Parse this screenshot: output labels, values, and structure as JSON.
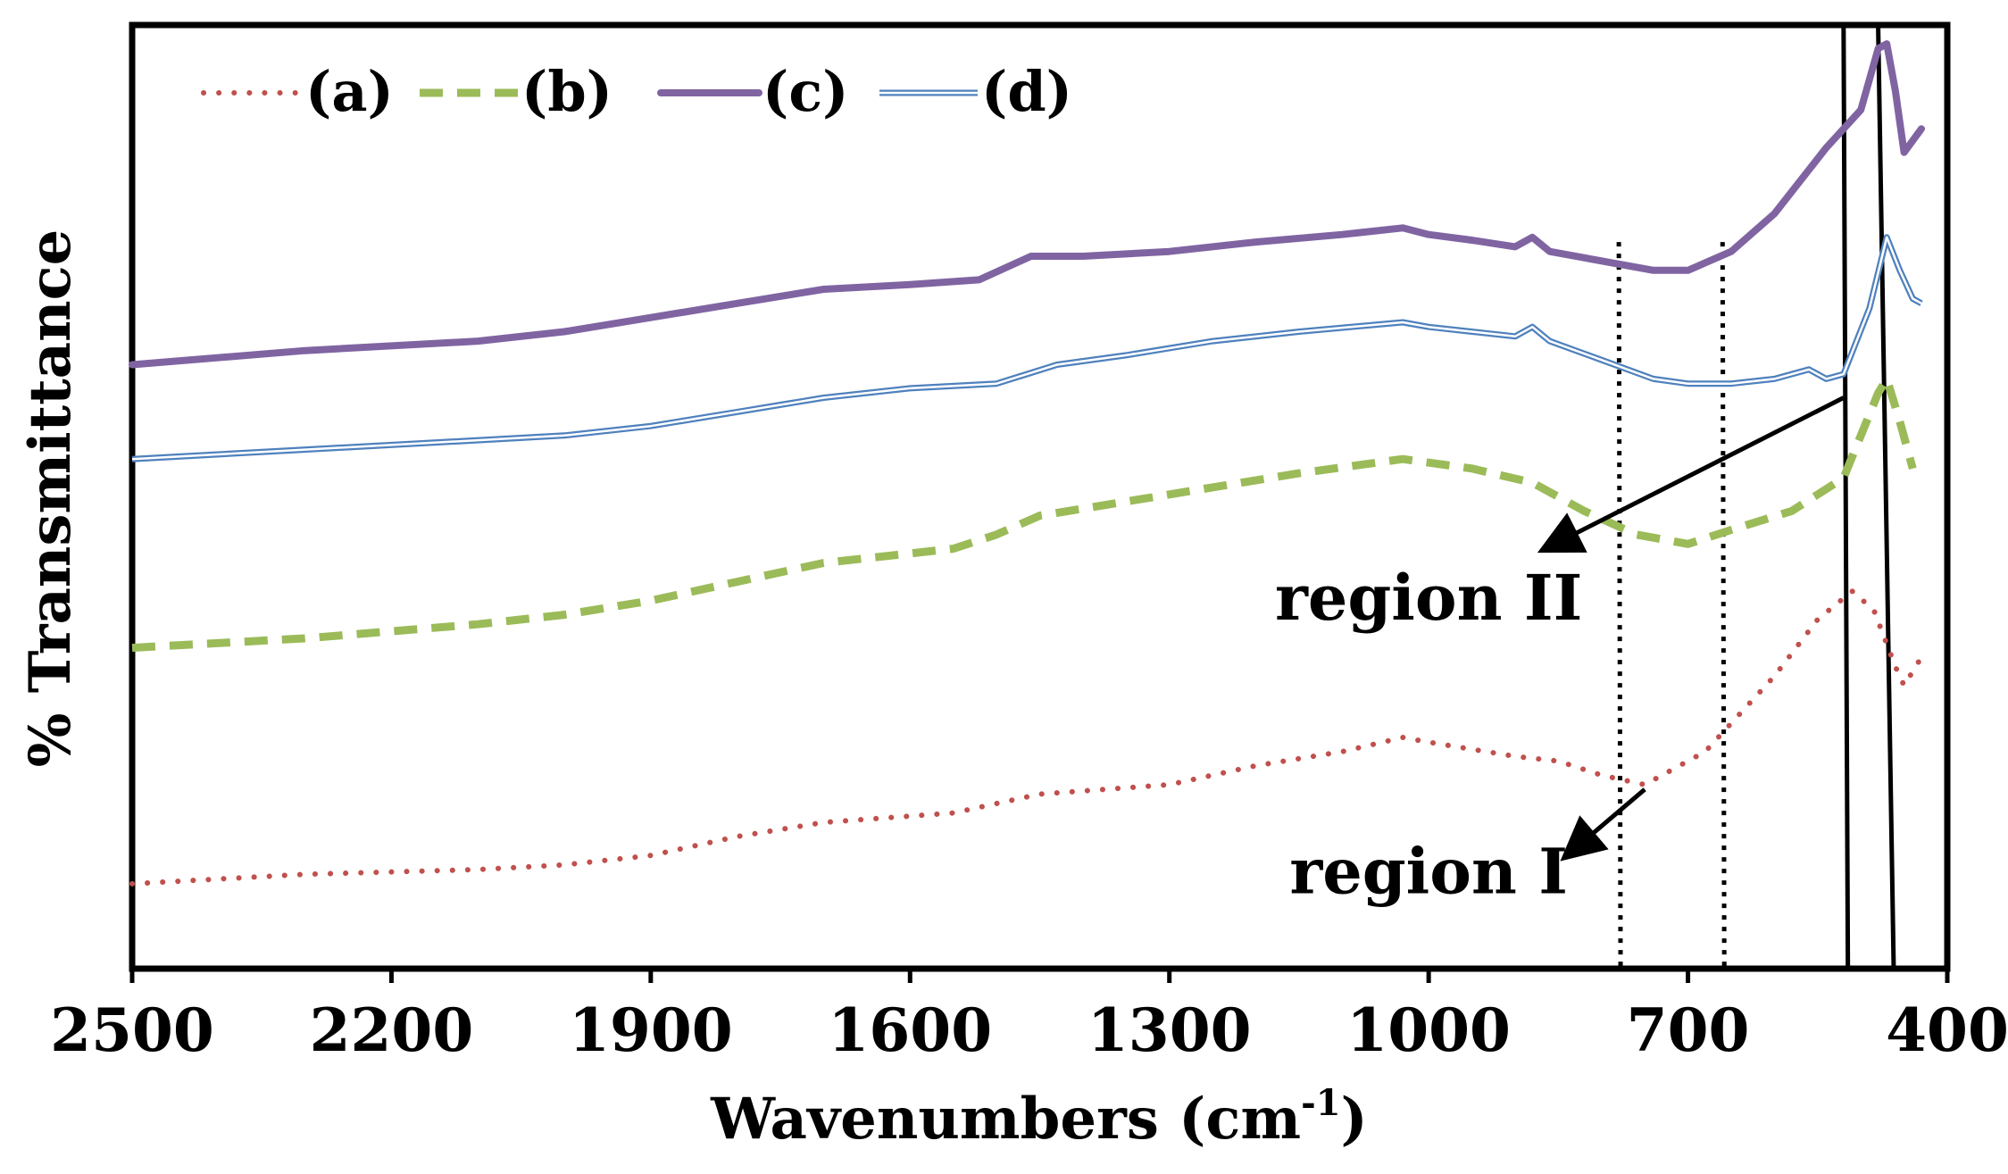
{
  "chart_data": {
    "type": "line",
    "title": "",
    "xlabel": "Wavenumbers (cm",
    "xlabel_superscript": "-1",
    "xlabel_suffix": ")",
    "ylabel": "% Transmittance",
    "xlim": [
      2500,
      400
    ],
    "x_reversed": true,
    "ylim": [
      0,
      100
    ],
    "y_ticks_shown": false,
    "grid": false,
    "xticks": [
      2500,
      2200,
      1900,
      1600,
      1300,
      1000,
      700,
      400
    ],
    "legend": {
      "placement": "top-left",
      "entries": [
        "(a)",
        "(b)",
        "(c)",
        "(d)"
      ]
    },
    "series": [
      {
        "name": "(a)",
        "color": "#c0504d",
        "style": "dotted",
        "points": [
          [
            2500,
            9
          ],
          [
            2300,
            10
          ],
          [
            2100,
            10.5
          ],
          [
            2000,
            11
          ],
          [
            1900,
            12
          ],
          [
            1800,
            14
          ],
          [
            1700,
            15.5
          ],
          [
            1550,
            16.5
          ],
          [
            1450,
            18.5
          ],
          [
            1300,
            19.5
          ],
          [
            1200,
            21.5
          ],
          [
            1100,
            23
          ],
          [
            1030,
            24.5
          ],
          [
            1000,
            24
          ],
          [
            900,
            22.5
          ],
          [
            850,
            22
          ],
          [
            800,
            20.5
          ],
          [
            750,
            19.5
          ],
          [
            680,
            23
          ],
          [
            600,
            31
          ],
          [
            550,
            37
          ],
          [
            510,
            40
          ],
          [
            485,
            38
          ],
          [
            460,
            32
          ],
          [
            450,
            30
          ],
          [
            430,
            33
          ]
        ]
      },
      {
        "name": "(b)",
        "color": "#9bbb59",
        "style": "dashed",
        "points": [
          [
            2500,
            34
          ],
          [
            2300,
            35
          ],
          [
            2100,
            36.5
          ],
          [
            2000,
            37.5
          ],
          [
            1900,
            39
          ],
          [
            1800,
            41
          ],
          [
            1700,
            43
          ],
          [
            1550,
            44.5
          ],
          [
            1500,
            46
          ],
          [
            1450,
            48
          ],
          [
            1350,
            49.5
          ],
          [
            1250,
            51
          ],
          [
            1150,
            52.5
          ],
          [
            1030,
            54
          ],
          [
            950,
            53
          ],
          [
            880,
            51.5
          ],
          [
            820,
            48.5
          ],
          [
            760,
            46
          ],
          [
            700,
            45
          ],
          [
            650,
            46.5
          ],
          [
            580,
            48.5
          ],
          [
            520,
            52
          ],
          [
            480,
            61
          ],
          [
            470,
            62.5
          ],
          [
            455,
            58
          ],
          [
            440,
            53
          ]
        ]
      },
      {
        "name": "(c)",
        "color": "#8064a2",
        "style": "solid",
        "points": [
          [
            2500,
            64
          ],
          [
            2300,
            65.5
          ],
          [
            2100,
            66.5
          ],
          [
            2000,
            67.5
          ],
          [
            1900,
            69
          ],
          [
            1800,
            70.5
          ],
          [
            1700,
            72
          ],
          [
            1600,
            72.5
          ],
          [
            1520,
            73
          ],
          [
            1460,
            75.5
          ],
          [
            1400,
            75.5
          ],
          [
            1300,
            76
          ],
          [
            1200,
            77
          ],
          [
            1100,
            77.8
          ],
          [
            1030,
            78.5
          ],
          [
            1000,
            77.8
          ],
          [
            950,
            77.2
          ],
          [
            900,
            76.5
          ],
          [
            880,
            77.5
          ],
          [
            860,
            76
          ],
          [
            800,
            75
          ],
          [
            740,
            74
          ],
          [
            700,
            74
          ],
          [
            650,
            76
          ],
          [
            600,
            80
          ],
          [
            540,
            87
          ],
          [
            500,
            91
          ],
          [
            480,
            97.5
          ],
          [
            470,
            98
          ],
          [
            460,
            93
          ],
          [
            450,
            86.5
          ],
          [
            430,
            89
          ]
        ]
      },
      {
        "name": "(d)",
        "color": "#4f81bd",
        "style": "double",
        "points": [
          [
            2500,
            54
          ],
          [
            2300,
            55
          ],
          [
            2100,
            56
          ],
          [
            2000,
            56.5
          ],
          [
            1900,
            57.5
          ],
          [
            1800,
            59
          ],
          [
            1700,
            60.5
          ],
          [
            1600,
            61.5
          ],
          [
            1500,
            62
          ],
          [
            1430,
            64
          ],
          [
            1350,
            65
          ],
          [
            1250,
            66.5
          ],
          [
            1150,
            67.5
          ],
          [
            1030,
            68.5
          ],
          [
            1000,
            68
          ],
          [
            950,
            67.5
          ],
          [
            900,
            67
          ],
          [
            880,
            68
          ],
          [
            860,
            66.5
          ],
          [
            800,
            64.5
          ],
          [
            740,
            62.5
          ],
          [
            700,
            62
          ],
          [
            650,
            62
          ],
          [
            600,
            62.5
          ],
          [
            560,
            63.5
          ],
          [
            540,
            62.5
          ],
          [
            520,
            63
          ],
          [
            490,
            70
          ],
          [
            470,
            77.5
          ],
          [
            455,
            74
          ],
          [
            440,
            71
          ],
          [
            430,
            70.5
          ]
        ]
      }
    ],
    "reference_lines": [
      {
        "style": "dotted",
        "from": 780,
        "to": 778
      },
      {
        "style": "dotted",
        "from": 660,
        "to": 658
      },
      {
        "style": "solid",
        "from": 520,
        "to": 515
      },
      {
        "style": "solid",
        "from": 480,
        "to": 462
      }
    ],
    "annotations": [
      {
        "text": "region II",
        "label_x": 1000,
        "label_y": 37,
        "arrow_from": [
          520,
          60.5
        ],
        "arrow_to": [
          865,
          44.5
        ]
      },
      {
        "text": "region I",
        "label_x": 1000,
        "label_y": 8,
        "arrow_from": [
          750,
          19
        ],
        "arrow_to": [
          840,
          12
        ]
      }
    ]
  }
}
